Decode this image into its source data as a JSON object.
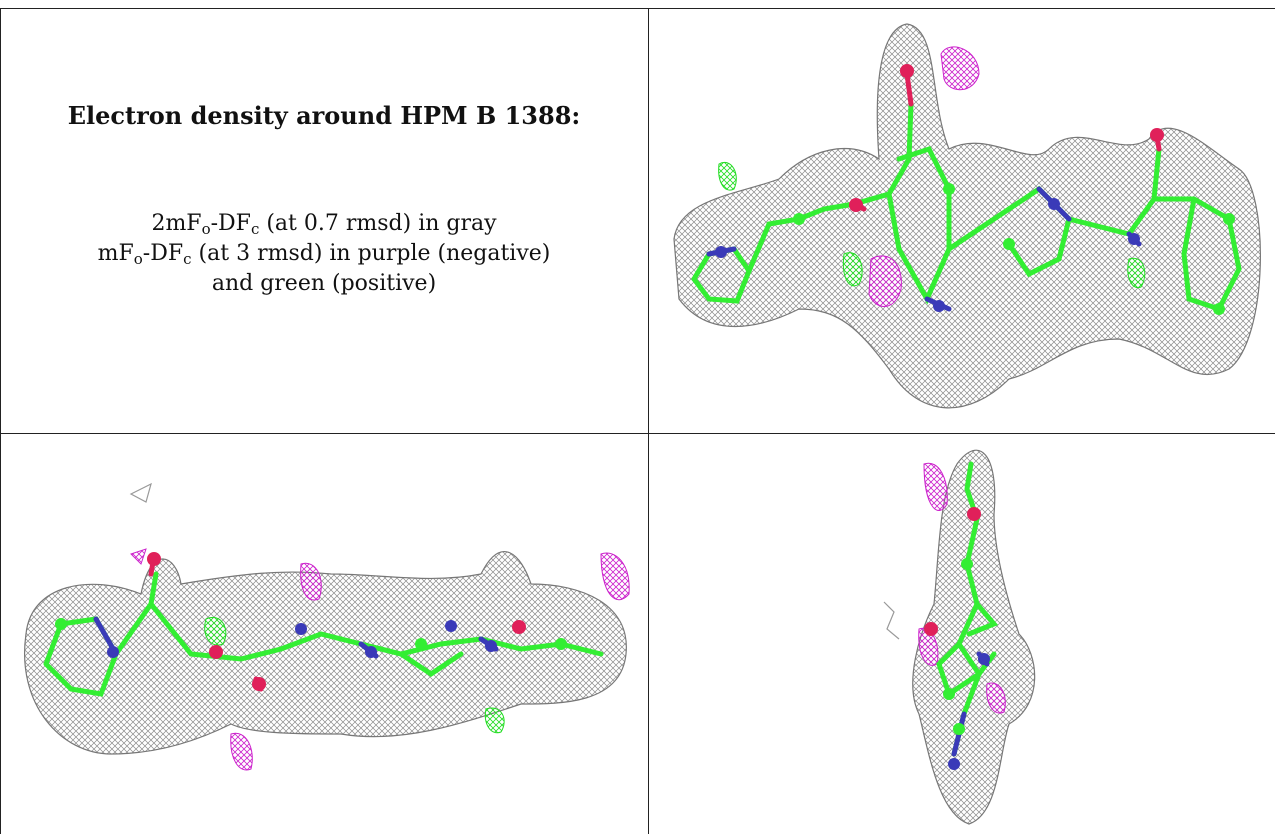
{
  "caption": {
    "title": "Electron density around HPM B 1388:",
    "line1_pre": "2mF",
    "line1_sub1": "o",
    "line1_mid": "-DF",
    "line1_sub2": "c",
    "line1_post": " (at 0.7 rmsd) in gray",
    "line2_pre": "mF",
    "line2_sub1": "o",
    "line2_mid": "-DF",
    "line2_sub2": "c",
    "line2_post": " (at 3 rmsd) in purple (negative)",
    "line3": "and green (positive)"
  },
  "colors": {
    "mesh_gray": "#8a8a8a",
    "carbon_green": "#33ee33",
    "nitrogen_blue": "#3a3ab8",
    "oxygen_red": "#e0205a",
    "negative_purple": "#cc22cc",
    "positive_green": "#22dd22"
  }
}
